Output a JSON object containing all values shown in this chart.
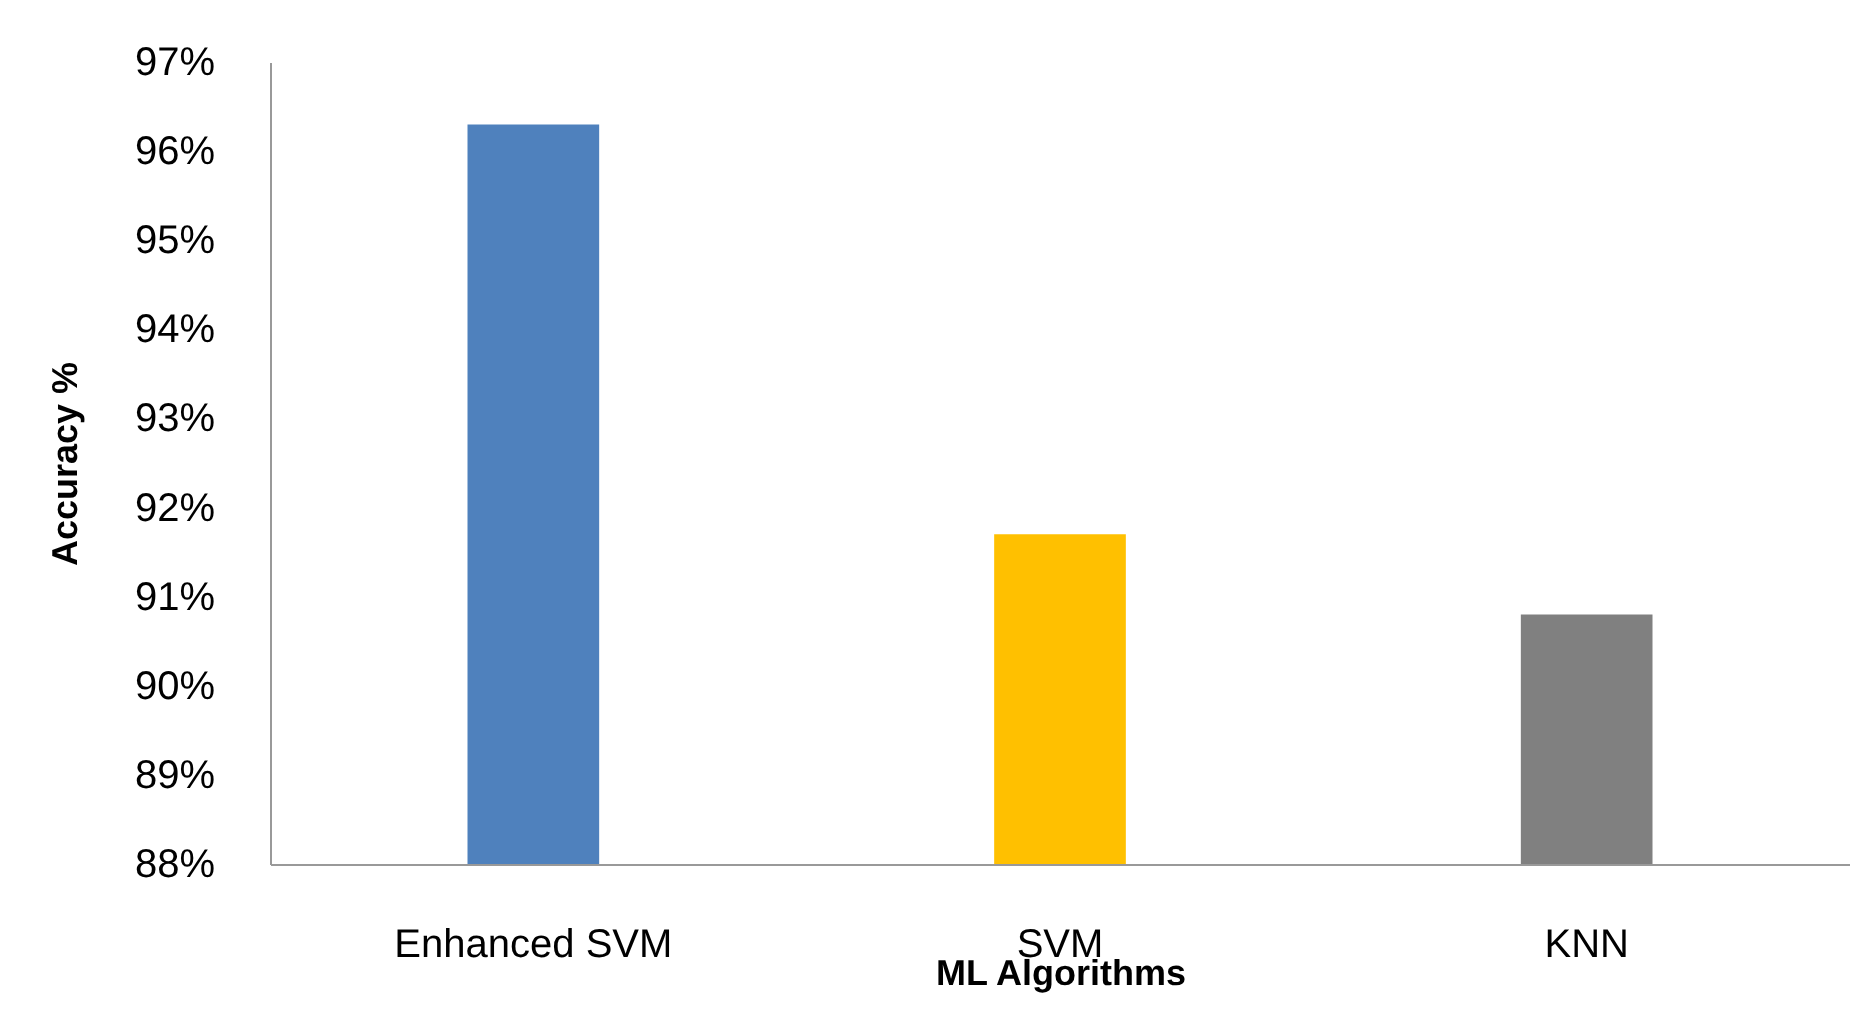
{
  "chart_data": {
    "type": "bar",
    "xlabel": "ML Algorithms",
    "ylabel": "Accuracy %",
    "categories": [
      "Enhanced SVM",
      "SVM",
      "KNN"
    ],
    "values": [
      96.3,
      91.7,
      90.8
    ],
    "colors": [
      "#4f81bd",
      "#ffc000",
      "#808080"
    ],
    "ylim": [
      88,
      97
    ],
    "yticks": [
      {
        "value": 88,
        "label": "88%"
      },
      {
        "value": 89,
        "label": "89%"
      },
      {
        "value": 90,
        "label": "90%"
      },
      {
        "value": 91,
        "label": "91%"
      },
      {
        "value": 92,
        "label": "92%"
      },
      {
        "value": 93,
        "label": "93%"
      },
      {
        "value": 94,
        "label": "94%"
      },
      {
        "value": 95,
        "label": "95%"
      },
      {
        "value": 96,
        "label": "96%"
      },
      {
        "value": 97,
        "label": "97%"
      }
    ],
    "grid": false
  }
}
